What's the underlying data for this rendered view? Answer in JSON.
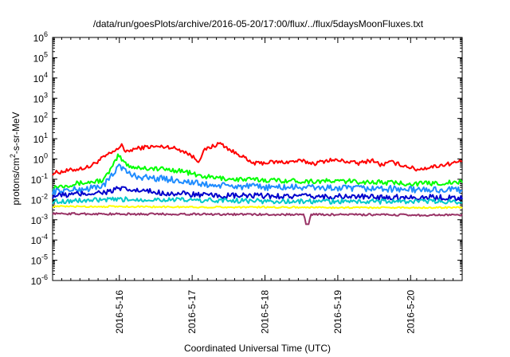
{
  "chart_data": {
    "type": "line",
    "title": "/data/run/goesPlots/archive/2016-05-20/17:00/flux/../flux/5daysMoonFluxes.txt",
    "xlabel": "Coordinated Universal Time (UTC)",
    "ylabel": {
      "base": "protons/cm",
      "sup": "2",
      "rest": "-s-sr-MeV"
    },
    "yscale": "log",
    "ylim_exp": [
      -6,
      6
    ],
    "ytick_exps": [
      "-6",
      "-5",
      "-4",
      "-3",
      "-2",
      "-1",
      "0",
      "1",
      "2",
      "3",
      "4",
      "5",
      "6"
    ],
    "ytick_base": "10",
    "xlim_days": [
      "2016-05-15 02:00",
      "2016-05-20 17:00"
    ],
    "xtick_labels": [
      "2016-5-16",
      "2016-5-17",
      "2016-5-18",
      "2016-5-19",
      "2016-5-20"
    ],
    "grid": false,
    "legend": "none",
    "series": [
      {
        "color": "#ff0000",
        "x": [
          0,
          0.3,
          0.5,
          0.7,
          0.9,
          0.95,
          1.0,
          1.1,
          1.3,
          1.6,
          1.8,
          1.9,
          2.0,
          2.1,
          2.3,
          2.5,
          2.6,
          2.7,
          2.8,
          3.0,
          3.2,
          3.4,
          3.6,
          3.8,
          4.0,
          4.2,
          4.4,
          4.5,
          4.65,
          4.8,
          4.9,
          5.0,
          5.2,
          5.65
        ],
        "y": [
          0.2,
          0.3,
          0.4,
          1.2,
          3,
          6,
          2,
          3,
          4,
          4,
          2.5,
          1.5,
          0.8,
          3,
          6,
          2,
          1.5,
          0.7,
          0.6,
          0.7,
          0.7,
          0.8,
          0.6,
          0.9,
          0.8,
          0.6,
          0.9,
          0.5,
          0.7,
          0.5,
          0.4,
          0.3,
          0.4,
          0.8
        ]
      },
      {
        "color": "#00ff00",
        "x": [
          0,
          0.3,
          0.5,
          0.7,
          0.85,
          0.9,
          1.0,
          1.1,
          1.3,
          1.6,
          1.8,
          2.0,
          2.2,
          2.5,
          3.0,
          3.5,
          4.0,
          4.5,
          5.0,
          5.65
        ],
        "y": [
          0.04,
          0.06,
          0.07,
          0.09,
          0.6,
          1.5,
          0.6,
          0.4,
          0.35,
          0.3,
          0.25,
          0.15,
          0.12,
          0.1,
          0.09,
          0.08,
          0.08,
          0.07,
          0.06,
          0.07
        ]
      },
      {
        "color": "#1e8cff",
        "x": [
          0,
          0.3,
          0.5,
          0.7,
          0.85,
          0.9,
          1.0,
          1.1,
          1.3,
          1.6,
          1.8,
          2.0,
          2.2,
          2.5,
          3.0,
          3.5,
          4.0,
          4.5,
          5.0,
          5.65
        ],
        "y": [
          0.025,
          0.03,
          0.035,
          0.05,
          0.2,
          0.6,
          0.25,
          0.15,
          0.12,
          0.1,
          0.08,
          0.06,
          0.05,
          0.045,
          0.04,
          0.04,
          0.035,
          0.035,
          0.03,
          0.03
        ]
      },
      {
        "color": "#0000cc",
        "x": [
          0,
          0.5,
          0.8,
          0.9,
          1.0,
          1.3,
          1.6,
          1.9,
          2.2,
          2.5,
          3.0,
          3.5,
          4.0,
          4.5,
          5.0,
          5.65
        ],
        "y": [
          0.015,
          0.02,
          0.025,
          0.035,
          0.03,
          0.025,
          0.02,
          0.018,
          0.015,
          0.015,
          0.015,
          0.014,
          0.014,
          0.013,
          0.013,
          0.012
        ]
      },
      {
        "color": "#00c8c8",
        "x": [
          0,
          0.5,
          1.0,
          1.5,
          2.0,
          2.5,
          3.0,
          3.5,
          4.0,
          4.5,
          5.0,
          5.65
        ],
        "y": [
          0.008,
          0.009,
          0.01,
          0.01,
          0.009,
          0.009,
          0.008,
          0.008,
          0.008,
          0.008,
          0.008,
          0.008
        ]
      },
      {
        "color": "#ffff00",
        "x": [
          0,
          1.0,
          2.0,
          3.0,
          4.0,
          5.0,
          5.65
        ],
        "y": [
          0.0045,
          0.0045,
          0.0042,
          0.0042,
          0.004,
          0.004,
          0.004
        ]
      },
      {
        "color": "#993366",
        "x": [
          0,
          1.0,
          2.0,
          3.0,
          3.45,
          3.5,
          3.55,
          4.0,
          5.0,
          5.65
        ],
        "y": [
          0.002,
          0.0019,
          0.0019,
          0.0018,
          0.0018,
          0.0006,
          0.0018,
          0.0018,
          0.0017,
          0.0017
        ]
      }
    ]
  }
}
